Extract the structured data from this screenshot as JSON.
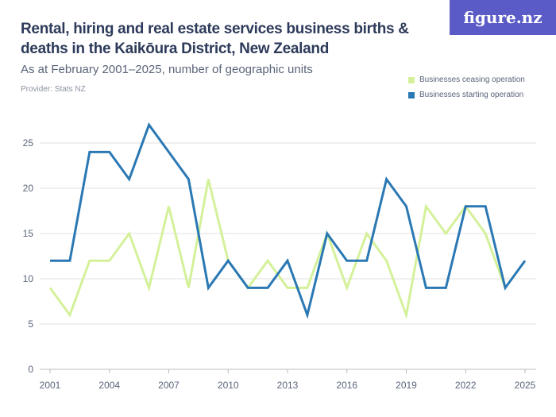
{
  "header": {
    "title": "Rental, hiring and real estate services business births & deaths in the Kaikōura District, New Zealand",
    "subtitle": "As at February 2001–2025, number of geographic units",
    "provider": "Provider: Stats NZ",
    "logo": "figure.nz"
  },
  "chart_data": {
    "type": "line",
    "title": "Rental, hiring and real estate services business births & deaths in the Kaikōura District, New Zealand",
    "subtitle": "As at February 2001–2025, number of geographic units",
    "xlabel": "",
    "ylabel": "",
    "x": [
      2001,
      2002,
      2003,
      2004,
      2005,
      2006,
      2007,
      2008,
      2009,
      2010,
      2011,
      2012,
      2013,
      2014,
      2015,
      2016,
      2017,
      2018,
      2019,
      2020,
      2021,
      2022,
      2023,
      2024,
      2025
    ],
    "xticks": [
      "2001",
      "2004",
      "2007",
      "2010",
      "2013",
      "2016",
      "2019",
      "2022",
      "2025"
    ],
    "yticks": [
      "0",
      "5",
      "10",
      "15",
      "20",
      "25"
    ],
    "ylim": [
      0,
      25
    ],
    "grid": true,
    "legend_position": "top-right",
    "series": [
      {
        "name": "Businesses ceasing operation",
        "color": "#d4f19a",
        "values": [
          9,
          6,
          12,
          12,
          15,
          9,
          18,
          9,
          21,
          12,
          9,
          12,
          9,
          9,
          15,
          9,
          15,
          12,
          6,
          18,
          15,
          18,
          15,
          9,
          null
        ]
      },
      {
        "name": "Businesses starting operation",
        "color": "#2a78b4",
        "values": [
          12,
          12,
          24,
          24,
          21,
          27,
          24,
          21,
          9,
          12,
          9,
          9,
          12,
          6,
          15,
          12,
          12,
          21,
          18,
          9,
          9,
          18,
          18,
          9,
          12
        ]
      }
    ]
  }
}
